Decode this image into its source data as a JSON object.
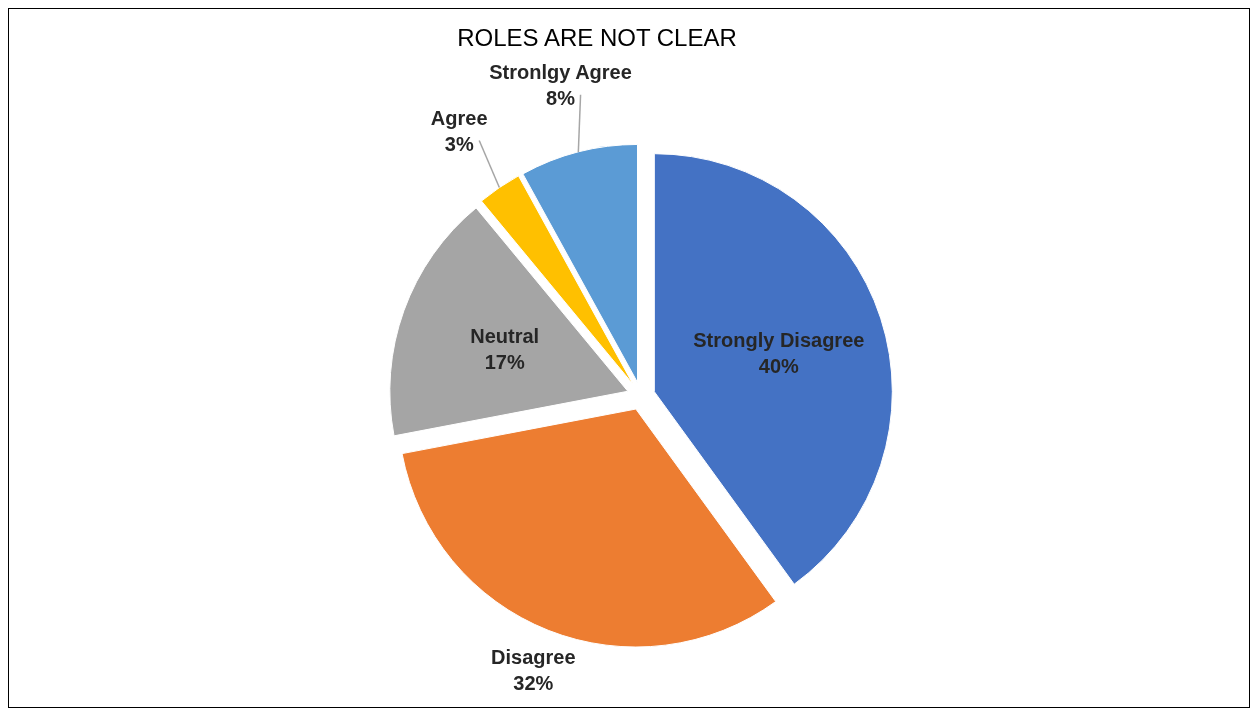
{
  "chart_data": {
    "type": "pie",
    "title": "ROLES ARE NOT CLEAR",
    "categories": [
      "Strongly Disagree",
      "Disagree",
      "Neutral",
      "Agree",
      "Stronlgy Agree"
    ],
    "values": [
      40,
      32,
      17,
      3,
      8
    ],
    "colors": [
      "#4472c4",
      "#ed7d31",
      "#a5a5a5",
      "#ffc000",
      "#5b9bd5"
    ],
    "value_labels": [
      "40%",
      "32%",
      "17%",
      "3%",
      "8%"
    ]
  }
}
